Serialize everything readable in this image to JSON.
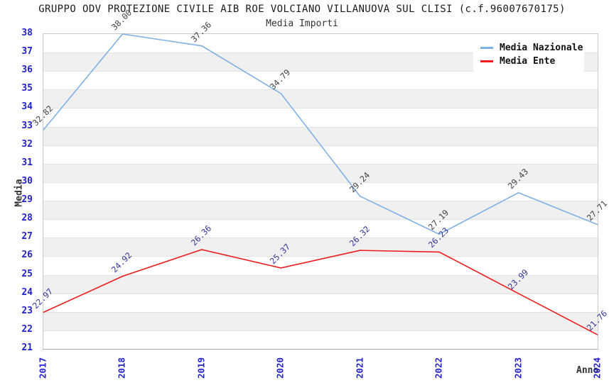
{
  "header": {
    "title": "GRUPPO ODV PROTEZIONE CIVILE AIB ROE VOLCIANO VILLANUOVA SUL CLISI (c.f.96007670175)",
    "subtitle": "Media Importi"
  },
  "colors": {
    "axis_tick_label": "#2222cc",
    "band_stripe": "#f0f0f0",
    "nazionale_line": "#7fb0e3",
    "nazionale_point_label": "#404040",
    "ente_line": "#ee1c1c",
    "ente_point_label": "#333399"
  },
  "chart_data": {
    "type": "line",
    "title": "GRUPPO ODV PROTEZIONE CIVILE AIB ROE VOLCIANO VILLANUOVA SUL CLISI (c.f.96007670175)",
    "subtitle": "Media Importi",
    "xlabel": "Anno",
    "ylabel": "Media",
    "categories": [
      "2017",
      "2018",
      "2019",
      "2020",
      "2021",
      "2022",
      "2023",
      "2024"
    ],
    "series": [
      {
        "name": "Media Nazionale",
        "color": "#7fb0e3",
        "label_color": "#404040",
        "values": [
          32.82,
          38.0,
          37.36,
          34.79,
          29.24,
          27.19,
          29.43,
          27.71
        ]
      },
      {
        "name": "Media Ente",
        "color": "#ee1c1c",
        "label_color": "#333399",
        "values": [
          22.97,
          24.92,
          26.36,
          25.37,
          26.32,
          26.23,
          23.99,
          21.76
        ]
      }
    ],
    "ylim": [
      21,
      38
    ],
    "y_tick_step": 1,
    "grid": "horizontal-bands-alternating",
    "legend_position": "top-right",
    "point_labels": "values shown rotated 45deg above each point, two decimals"
  }
}
